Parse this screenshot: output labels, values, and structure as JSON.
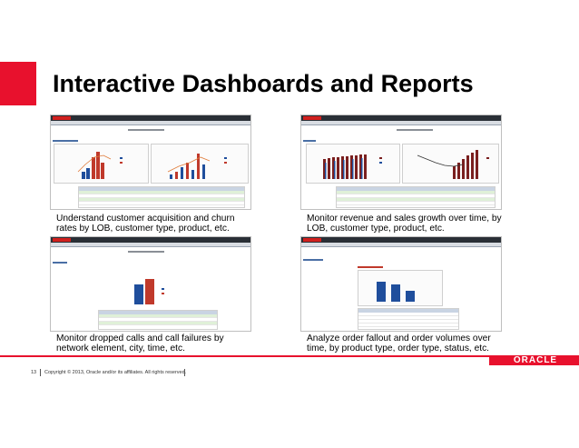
{
  "slide": {
    "title": "Interactive Dashboards and Reports",
    "footer": {
      "page_number": "13",
      "copyright": "Copyright © 2013, Oracle and/or its affiliates. All rights reserved.",
      "brand": "ORACLE"
    }
  },
  "panels": [
    {
      "caption_line1": "Understand customer acquisition and churn",
      "caption_line2": "rates by LOB, customer type, product, etc."
    },
    {
      "caption_line1": "Monitor revenue and sales growth over time, by",
      "caption_line2": "LOB, customer type, product, etc."
    },
    {
      "caption_line1": "Monitor dropped calls and call failures by",
      "caption_line2": "network element, city, time, etc."
    },
    {
      "caption_line1": "Analyze order fallout and order volumes over",
      "caption_line2": "time, by product type, order type, status, etc."
    }
  ],
  "colors": {
    "accent": "#e8112d",
    "bar_blue": "#1f4e9c",
    "bar_red": "#c0392b"
  }
}
